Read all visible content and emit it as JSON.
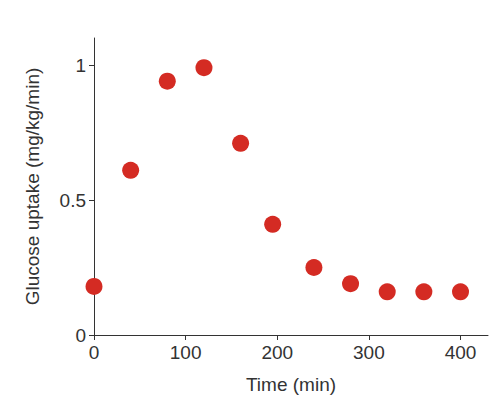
{
  "chart_data": {
    "type": "scatter",
    "x_label": "Time (min)",
    "y_label": "Glucose uptake (mg/kg/min)",
    "x": [
      0,
      40,
      80,
      120,
      160,
      195,
      240,
      280,
      320,
      360,
      400
    ],
    "values": [
      0.18,
      0.61,
      0.94,
      0.99,
      0.71,
      0.41,
      0.25,
      0.19,
      0.16,
      0.16,
      0.16
    ],
    "color": "#d42b23",
    "marker": "circle",
    "xlim": [
      0,
      430
    ],
    "xticks": [
      0,
      100,
      200,
      300,
      400
    ],
    "ylim": [
      0,
      1.1
    ],
    "yticks": [
      0,
      0.5,
      1
    ],
    "grid": false
  }
}
